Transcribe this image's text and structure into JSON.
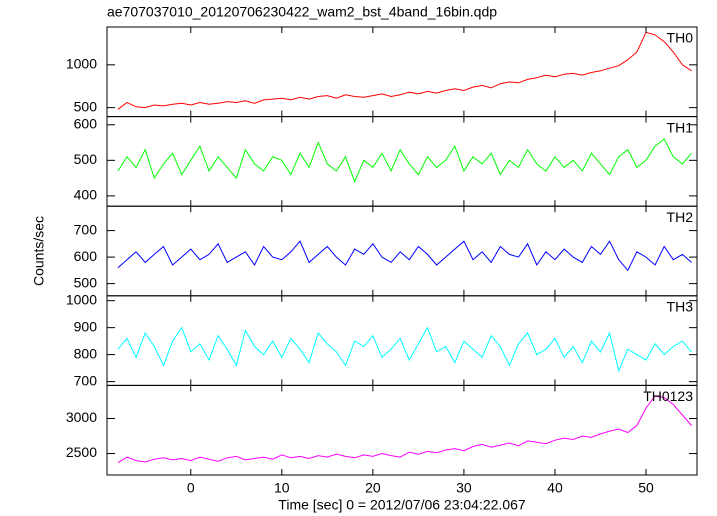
{
  "chart_data": [
    {
      "type": "line",
      "title": "ae707037010_20120706230422_wam2_bst_4band_16bin.qdp",
      "y_label": "Counts/sec",
      "label": "TH0",
      "color": "#ff0000",
      "x": [
        -8,
        -7,
        -6,
        -5,
        -4,
        -3,
        -2,
        -1,
        0,
        1,
        2,
        3,
        4,
        5,
        6,
        7,
        8,
        9,
        10,
        11,
        12,
        13,
        14,
        15,
        16,
        17,
        18,
        19,
        20,
        21,
        22,
        23,
        24,
        25,
        26,
        27,
        28,
        29,
        30,
        31,
        32,
        33,
        34,
        35,
        36,
        37,
        38,
        39,
        40,
        41,
        42,
        43,
        44,
        45,
        46,
        47,
        48,
        49,
        50,
        51,
        52,
        53,
        54,
        55
      ],
      "values": [
        480,
        560,
        510,
        500,
        530,
        520,
        540,
        550,
        530,
        560,
        540,
        550,
        570,
        560,
        580,
        550,
        590,
        600,
        610,
        590,
        620,
        600,
        630,
        640,
        610,
        650,
        630,
        620,
        640,
        660,
        630,
        650,
        680,
        660,
        690,
        670,
        700,
        720,
        700,
        740,
        760,
        730,
        780,
        800,
        790,
        830,
        850,
        880,
        860,
        890,
        900,
        880,
        910,
        930,
        960,
        990,
        1060,
        1150,
        1380,
        1350,
        1270,
        1150,
        1000,
        930
      ],
      "xlim": [
        -9.2,
        55.6
      ],
      "xticks": [
        0,
        10,
        20,
        30,
        40,
        50
      ],
      "ylim": [
        395,
        1442
      ],
      "yticks": [
        500,
        1000
      ]
    },
    {
      "type": "line",
      "label": "TH1",
      "color": "#00ff00",
      "x": [
        -8,
        -7,
        -6,
        -5,
        -4,
        -3,
        -2,
        -1,
        0,
        1,
        2,
        3,
        4,
        5,
        6,
        7,
        8,
        9,
        10,
        11,
        12,
        13,
        14,
        15,
        16,
        17,
        18,
        19,
        20,
        21,
        22,
        23,
        24,
        25,
        26,
        27,
        28,
        29,
        30,
        31,
        32,
        33,
        34,
        35,
        36,
        37,
        38,
        39,
        40,
        41,
        42,
        43,
        44,
        45,
        46,
        47,
        48,
        49,
        50,
        51,
        52,
        53,
        54,
        55
      ],
      "values": [
        470,
        510,
        480,
        530,
        450,
        490,
        520,
        460,
        500,
        540,
        470,
        510,
        480,
        450,
        530,
        490,
        470,
        510,
        500,
        460,
        520,
        480,
        550,
        490,
        470,
        510,
        440,
        500,
        480,
        520,
        470,
        530,
        490,
        460,
        510,
        480,
        500,
        540,
        470,
        510,
        490,
        520,
        460,
        500,
        480,
        530,
        490,
        470,
        510,
        480,
        500,
        470,
        520,
        490,
        460,
        510,
        530,
        480,
        500,
        540,
        560,
        510,
        490,
        520
      ],
      "xlim": [
        -9.2,
        55.6
      ],
      "xticks": [
        0,
        10,
        20,
        30,
        40,
        50
      ],
      "ylim": [
        371,
        623
      ],
      "yticks": [
        400,
        500,
        600
      ]
    },
    {
      "type": "line",
      "label": "TH2",
      "color": "#0000ff",
      "x": [
        -8,
        -7,
        -6,
        -5,
        -4,
        -3,
        -2,
        -1,
        0,
        1,
        2,
        3,
        4,
        5,
        6,
        7,
        8,
        9,
        10,
        11,
        12,
        13,
        14,
        15,
        16,
        17,
        18,
        19,
        20,
        21,
        22,
        23,
        24,
        25,
        26,
        27,
        28,
        29,
        30,
        31,
        32,
        33,
        34,
        35,
        36,
        37,
        38,
        39,
        40,
        41,
        42,
        43,
        44,
        45,
        46,
        47,
        48,
        49,
        50,
        51,
        52,
        53,
        54,
        55
      ],
      "values": [
        560,
        590,
        620,
        580,
        610,
        640,
        570,
        600,
        630,
        590,
        610,
        650,
        580,
        600,
        620,
        570,
        640,
        600,
        590,
        620,
        660,
        580,
        610,
        640,
        600,
        570,
        630,
        610,
        650,
        600,
        580,
        620,
        590,
        640,
        610,
        570,
        600,
        630,
        660,
        590,
        620,
        580,
        640,
        610,
        600,
        650,
        570,
        620,
        590,
        630,
        600,
        580,
        640,
        610,
        660,
        590,
        550,
        620,
        600,
        570,
        640,
        590,
        610,
        580
      ],
      "xlim": [
        -9.2,
        55.6
      ],
      "xticks": [
        0,
        10,
        20,
        30,
        40,
        50
      ],
      "ylim": [
        454,
        792
      ],
      "yticks": [
        500,
        600,
        700
      ]
    },
    {
      "type": "line",
      "label": "TH3",
      "color": "#00ffff",
      "x": [
        -8,
        -7,
        -6,
        -5,
        -4,
        -3,
        -2,
        -1,
        0,
        1,
        2,
        3,
        4,
        5,
        6,
        7,
        8,
        9,
        10,
        11,
        12,
        13,
        14,
        15,
        16,
        17,
        18,
        19,
        20,
        21,
        22,
        23,
        24,
        25,
        26,
        27,
        28,
        29,
        30,
        31,
        32,
        33,
        34,
        35,
        36,
        37,
        38,
        39,
        40,
        41,
        42,
        43,
        44,
        45,
        46,
        47,
        48,
        49,
        50,
        51,
        52,
        53,
        54,
        55
      ],
      "values": [
        820,
        860,
        790,
        880,
        830,
        760,
        850,
        900,
        810,
        840,
        780,
        870,
        820,
        760,
        890,
        830,
        800,
        850,
        790,
        860,
        820,
        770,
        880,
        840,
        810,
        760,
        850,
        830,
        870,
        790,
        820,
        860,
        780,
        840,
        900,
        810,
        830,
        770,
        850,
        820,
        790,
        870,
        830,
        760,
        840,
        880,
        800,
        820,
        860,
        790,
        830,
        770,
        850,
        810,
        880,
        740,
        820,
        800,
        780,
        840,
        800,
        830,
        850,
        810
      ],
      "xlim": [
        -9.2,
        55.6
      ],
      "xticks": [
        0,
        10,
        20,
        30,
        40,
        50
      ],
      "ylim": [
        686,
        1018
      ],
      "yticks": [
        700,
        800,
        900,
        1000
      ]
    },
    {
      "type": "line",
      "label": "TH0123",
      "x_label": "Time [sec] 0 = 2012/07/06 23:04:22.067",
      "color": "#ff00ff",
      "x": [
        -8,
        -7,
        -6,
        -5,
        -4,
        -3,
        -2,
        -1,
        0,
        1,
        2,
        3,
        4,
        5,
        6,
        7,
        8,
        9,
        10,
        11,
        12,
        13,
        14,
        15,
        16,
        17,
        18,
        19,
        20,
        21,
        22,
        23,
        24,
        25,
        26,
        27,
        28,
        29,
        30,
        31,
        32,
        33,
        34,
        35,
        36,
        37,
        38,
        39,
        40,
        41,
        42,
        43,
        44,
        45,
        46,
        47,
        48,
        49,
        50,
        51,
        52,
        53,
        54,
        55
      ],
      "values": [
        2370,
        2450,
        2400,
        2380,
        2420,
        2440,
        2410,
        2430,
        2400,
        2450,
        2420,
        2390,
        2440,
        2460,
        2410,
        2430,
        2450,
        2420,
        2480,
        2440,
        2460,
        2430,
        2470,
        2450,
        2490,
        2460,
        2440,
        2480,
        2460,
        2500,
        2470,
        2450,
        2520,
        2490,
        2530,
        2510,
        2550,
        2570,
        2540,
        2600,
        2630,
        2590,
        2620,
        2650,
        2610,
        2680,
        2660,
        2640,
        2690,
        2720,
        2700,
        2750,
        2730,
        2780,
        2820,
        2850,
        2800,
        2900,
        3150,
        3320,
        3300,
        3200,
        3050,
        2900
      ],
      "xlim": [
        -9.2,
        55.6
      ],
      "xticks": [
        0,
        10,
        20,
        30,
        40,
        50
      ],
      "ylim": [
        2194,
        3472
      ],
      "yticks": [
        2500,
        3000
      ]
    }
  ]
}
